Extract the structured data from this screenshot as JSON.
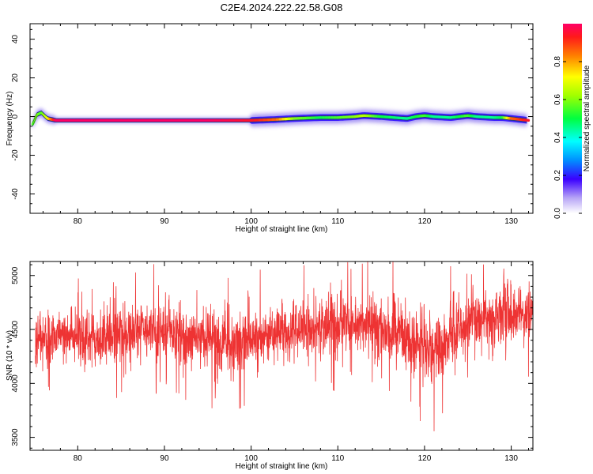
{
  "title": "C2E4.2024.222.22.58.G08",
  "chart_data": [
    {
      "type": "heatmap",
      "xlabel": "Height of straight line (km)",
      "ylabel": "Frequency (Hz)",
      "xlim": [
        74.5,
        132.5
      ],
      "ylim": [
        -50,
        48
      ],
      "xticks": [
        "80",
        "90",
        "100",
        "110",
        "120",
        "130"
      ],
      "yticks": [
        "40",
        "20",
        "0",
        "-20",
        "-40"
      ],
      "ridge": {
        "height_km": [
          74.8,
          75.3,
          75.8,
          76.5,
          77.5,
          80,
          85,
          90,
          95,
          100,
          103,
          105,
          108,
          110,
          112,
          113,
          115,
          118,
          119,
          120,
          121,
          123,
          125,
          126,
          128,
          129,
          130,
          132
        ],
        "frequency_hz": [
          -4,
          1,
          2,
          -1,
          -2,
          -2,
          -2,
          -2,
          -2,
          -2,
          -1.5,
          -1,
          -0.5,
          -0.5,
          0,
          0.5,
          0,
          -1,
          0,
          0.5,
          0,
          -0.5,
          0.5,
          0,
          -0.5,
          -0.5,
          -1,
          -2
        ],
        "amplitude": [
          0.55,
          0.6,
          0.55,
          0.7,
          1.0,
          1.0,
          1.0,
          1.0,
          1.0,
          0.95,
          0.85,
          0.6,
          0.5,
          0.55,
          0.6,
          0.65,
          0.5,
          0.45,
          0.5,
          0.55,
          0.45,
          0.45,
          0.55,
          0.45,
          0.45,
          0.5,
          0.85,
          0.95
        ]
      },
      "colorbar": {
        "label": "Normalized spectral amplitude",
        "range": [
          0,
          1
        ],
        "ticks": [
          "0.0",
          "0.2",
          "0.4",
          "0.6",
          "0.8"
        ]
      }
    },
    {
      "type": "line",
      "xlabel": "Height of straight line (km)",
      "ylabel": "SNR (10 * v/v)",
      "xlim": [
        74.5,
        132.5
      ],
      "ylim": [
        3380,
        5130
      ],
      "xticks": [
        "80",
        "90",
        "100",
        "110",
        "120",
        "130"
      ],
      "yticks": [
        "5000",
        "4500",
        "4000",
        "3500"
      ],
      "series": [
        {
          "color": "#ee3333",
          "envelope": {
            "height_km": [
              75,
              78,
              81,
              84,
              87,
              90,
              93,
              96,
              99,
              102,
              105,
              108,
              111,
              114,
              117,
              119,
              121,
              123,
              126,
              129,
              132
            ],
            "mean": [
              4380,
              4450,
              4400,
              4430,
              4480,
              4500,
              4450,
              4360,
              4400,
              4470,
              4480,
              4500,
              4560,
              4540,
              4480,
              4380,
              4300,
              4460,
              4580,
              4600,
              4640
            ],
            "spread": [
              230,
              230,
              230,
              230,
              230,
              230,
              240,
              250,
              240,
              230,
              230,
              230,
              230,
              240,
              250,
              280,
              300,
              250,
              230,
              230,
              230
            ]
          }
        }
      ]
    }
  ]
}
